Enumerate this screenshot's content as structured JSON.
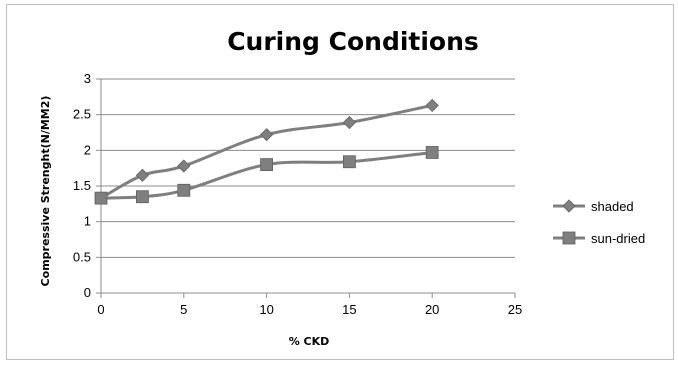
{
  "chart_data": {
    "type": "line",
    "title": "Curing Conditions",
    "xlabel": "% CKD",
    "ylabel": "Compressive Strenght(N/MM2)",
    "xlim": [
      0,
      25
    ],
    "ylim": [
      0,
      3
    ],
    "x_ticks": [
      "0",
      "5",
      "10",
      "15",
      "20",
      "25"
    ],
    "y_ticks": [
      "0",
      "0.5",
      "1",
      "1.5",
      "2",
      "2.5",
      "3"
    ],
    "grid": "horizontal",
    "legend": "right",
    "series": [
      {
        "name": "shaded",
        "marker": "diamond",
        "color": "#7f7f7f",
        "x": [
          0,
          2.5,
          5,
          10,
          15,
          20
        ],
        "y": [
          1.33,
          1.65,
          1.78,
          2.22,
          2.39,
          2.63
        ]
      },
      {
        "name": "sun-dried",
        "marker": "square",
        "color": "#7f7f7f",
        "x": [
          0,
          2.5,
          5,
          10,
          15,
          20
        ],
        "y": [
          1.33,
          1.35,
          1.44,
          1.8,
          1.84,
          1.97
        ]
      }
    ]
  }
}
